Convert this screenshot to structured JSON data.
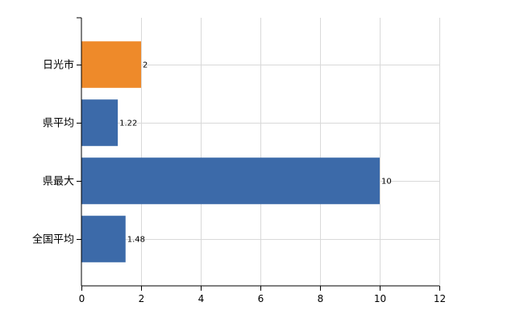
{
  "colors": {
    "default_bar": "#3c6aa9",
    "highlight_bar": "#ee8a2a"
  },
  "chart_data": {
    "type": "bar",
    "orientation": "horizontal",
    "categories": [
      "日光市",
      "県平均",
      "県最大",
      "全国平均"
    ],
    "values": [
      2,
      1.22,
      10,
      1.48
    ],
    "value_labels": [
      "2",
      "1.22",
      "10",
      "1.48"
    ],
    "highlight_index": 0,
    "title": "",
    "xlabel": "",
    "ylabel": "",
    "xlim": [
      0,
      12
    ],
    "xticks": [
      0,
      2,
      4,
      6,
      8,
      10,
      12
    ],
    "grid": true
  }
}
